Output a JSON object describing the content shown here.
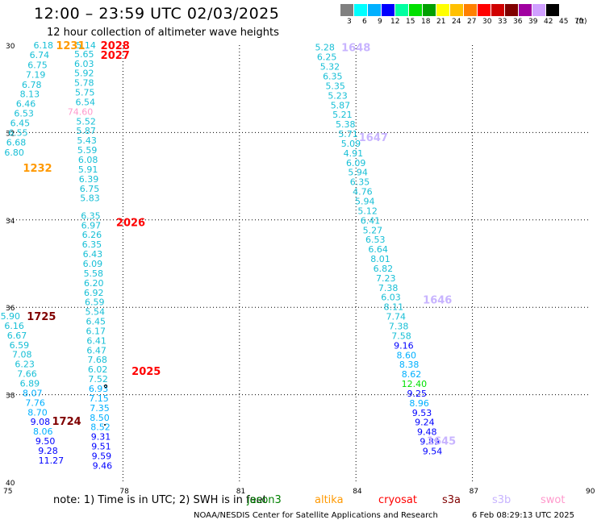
{
  "title": "12:00 – 23:59 UTC 02/03/2025",
  "subtitle": "12 hour collection of altimeter wave heights",
  "legend": {
    "unit": "(ft)",
    "labels": [
      "3",
      "6",
      "9",
      "12",
      "15",
      "18",
      "21",
      "24",
      "27",
      "30",
      "33",
      "36",
      "39",
      "42",
      "45",
      "70"
    ],
    "colors": [
      "#808080",
      "#00ffff",
      "#00b0ff",
      "#0000ff",
      "#00ffa0",
      "#00e000",
      "#00a000",
      "#ffff00",
      "#ffc000",
      "#ff8000",
      "#ff0000",
      "#d00000",
      "#800000",
      "#a000a0",
      "#d0a0ff",
      "#000000"
    ]
  },
  "axes": {
    "x_ticks": [
      "75",
      "78",
      "81",
      "84",
      "87",
      "90"
    ],
    "y_ticks": [
      "30",
      "32",
      "34",
      "36",
      "38",
      "40"
    ],
    "x_range": [
      75,
      90
    ],
    "y_range": [
      -30,
      -40
    ]
  },
  "note": {
    "text": "note:  1) Time is in UTC; 2) SWH is in feet",
    "satellites": [
      {
        "name": "jason3",
        "color": "#008000"
      },
      {
        "name": "altika",
        "color": "#ff9900"
      },
      {
        "name": "cryosat",
        "color": "#ff0000"
      },
      {
        "name": "s3a",
        "color": "#800000"
      },
      {
        "name": "s3b",
        "color": "#c8b4ff"
      },
      {
        "name": "swot",
        "color": "#ff99cc"
      }
    ]
  },
  "credit": "NOAA/NESDIS Center for Satellite Applications and Research",
  "credit_date": "6 Feb 08:29:13 UTC 2025",
  "pass_labels": [
    {
      "text": "1231",
      "lon": 76.65,
      "lat": -30.0,
      "color": "#ff9900"
    },
    {
      "text": "2028",
      "lon": 77.8,
      "lat": -30.0,
      "color": "#ff0000"
    },
    {
      "text": "2027",
      "lon": 77.8,
      "lat": -30.22,
      "color": "#ff0000"
    },
    {
      "text": "1648",
      "lon": 84.0,
      "lat": -30.05,
      "color": "#c8b4ff"
    },
    {
      "text": "1647",
      "lon": 84.45,
      "lat": -32.1,
      "color": "#c8b4ff"
    },
    {
      "text": "1232",
      "lon": 75.8,
      "lat": -32.8,
      "color": "#ff9900"
    },
    {
      "text": "2026",
      "lon": 78.2,
      "lat": -34.05,
      "color": "#ff0000"
    },
    {
      "text": "1646",
      "lon": 86.1,
      "lat": -35.82,
      "color": "#c8b4ff"
    },
    {
      "text": "1725",
      "lon": 75.9,
      "lat": -36.2,
      "color": "#800000"
    },
    {
      "text": "2025",
      "lon": 78.6,
      "lat": -37.45,
      "color": "#ff0000"
    },
    {
      "text": "1724",
      "lon": 76.55,
      "lat": -38.6,
      "color": "#800000"
    },
    {
      "text": "1645",
      "lon": 86.2,
      "lat": -39.05,
      "color": "#c8b4ff"
    }
  ],
  "observations": [
    {
      "v": "6.18",
      "lon": 75.95,
      "lat": -30.0
    },
    {
      "v": "5.14",
      "lon": 77.05,
      "lat": -30.0
    },
    {
      "v": "6.74",
      "lon": 75.85,
      "lat": -30.22
    },
    {
      "v": "5.65",
      "lon": 77.0,
      "lat": -30.2
    },
    {
      "v": "6.75",
      "lon": 75.8,
      "lat": -30.45
    },
    {
      "v": "6.03",
      "lon": 77.0,
      "lat": -30.42
    },
    {
      "v": "7.19",
      "lon": 75.75,
      "lat": -30.67
    },
    {
      "v": "5.92",
      "lon": 77.0,
      "lat": -30.64
    },
    {
      "v": "6.78",
      "lon": 75.65,
      "lat": -30.9
    },
    {
      "v": "5.78",
      "lon": 77.0,
      "lat": -30.86
    },
    {
      "v": "8.13",
      "lon": 75.6,
      "lat": -31.12
    },
    {
      "v": "5.75",
      "lon": 77.02,
      "lat": -31.08
    },
    {
      "v": "6.46",
      "lon": 75.5,
      "lat": -31.34
    },
    {
      "v": "6.54",
      "lon": 77.03,
      "lat": -31.3
    },
    {
      "v": "6.53",
      "lon": 75.45,
      "lat": -31.56
    },
    {
      "v": "74.60",
      "lon": 76.9,
      "lat": -31.52,
      "c": "#ff99cc"
    },
    {
      "v": "6.45",
      "lon": 75.35,
      "lat": -31.78
    },
    {
      "v": "5.52",
      "lon": 77.05,
      "lat": -31.74
    },
    {
      "v": "6.55",
      "lon": 75.3,
      "lat": -32.0
    },
    {
      "v": "5.87",
      "lon": 77.05,
      "lat": -31.96
    },
    {
      "v": "6.68",
      "lon": 75.25,
      "lat": -32.22
    },
    {
      "v": "5.43",
      "lon": 77.07,
      "lat": -32.18
    },
    {
      "v": "6.80",
      "lon": 75.2,
      "lat": -32.45
    },
    {
      "v": "5.59",
      "lon": 77.08,
      "lat": -32.4
    },
    {
      "v": "6.08",
      "lon": 77.1,
      "lat": -32.62
    },
    {
      "v": "5.91",
      "lon": 77.1,
      "lat": -32.84
    },
    {
      "v": "6.39",
      "lon": 77.12,
      "lat": -33.06
    },
    {
      "v": "6.75",
      "lon": 77.14,
      "lat": -33.28
    },
    {
      "v": "5.83",
      "lon": 77.15,
      "lat": -33.5
    },
    {
      "v": "6.35",
      "lon": 77.17,
      "lat": -33.9
    },
    {
      "v": "6.97",
      "lon": 77.18,
      "lat": -34.12
    },
    {
      "v": "6.26",
      "lon": 77.2,
      "lat": -34.34
    },
    {
      "v": "6.35",
      "lon": 77.2,
      "lat": -34.56
    },
    {
      "v": "6.43",
      "lon": 77.22,
      "lat": -34.78
    },
    {
      "v": "6.09",
      "lon": 77.22,
      "lat": -35.0
    },
    {
      "v": "5.58",
      "lon": 77.24,
      "lat": -35.22
    },
    {
      "v": "6.20",
      "lon": 77.25,
      "lat": -35.44
    },
    {
      "v": "6.92",
      "lon": 77.25,
      "lat": -35.66
    },
    {
      "v": "6.59",
      "lon": 77.27,
      "lat": -35.88
    },
    {
      "v": "5.54",
      "lon": 77.28,
      "lat": -36.1
    },
    {
      "v": "6.45",
      "lon": 77.3,
      "lat": -36.32
    },
    {
      "v": "6.17",
      "lon": 77.3,
      "lat": -36.54
    },
    {
      "v": "6.41",
      "lon": 77.32,
      "lat": -36.76
    },
    {
      "v": "6.47",
      "lon": 77.32,
      "lat": -36.98
    },
    {
      "v": "7.68",
      "lon": 77.34,
      "lat": -37.2
    },
    {
      "v": "6.02",
      "lon": 77.35,
      "lat": -37.42
    },
    {
      "v": "7.52",
      "lon": 77.36,
      "lat": -37.64
    },
    {
      "v": "6.93",
      "lon": 77.37,
      "lat": -37.86,
      "c": "#00b0ff"
    },
    {
      "v": "7.15",
      "lon": 77.38,
      "lat": -38.08,
      "c": "#00b0ff"
    },
    {
      "v": "7.35",
      "lon": 77.4,
      "lat": -38.3,
      "c": "#00b0ff"
    },
    {
      "v": "8.50",
      "lon": 77.4,
      "lat": -38.52,
      "c": "#00b0ff"
    },
    {
      "v": "8.52",
      "lon": 77.42,
      "lat": -38.74,
      "c": "#00b0ff"
    },
    {
      "v": "9.31",
      "lon": 77.43,
      "lat": -38.96,
      "c": "#0000ff"
    },
    {
      "v": "9.51",
      "lon": 77.44,
      "lat": -39.18,
      "c": "#0000ff"
    },
    {
      "v": "9.59",
      "lon": 77.45,
      "lat": -39.4,
      "c": "#0000ff"
    },
    {
      "v": "9.46",
      "lon": 77.47,
      "lat": -39.62,
      "c": "#0000ff"
    },
    {
      "v": "5.90",
      "lon": 75.1,
      "lat": -36.2
    },
    {
      "v": "6.16",
      "lon": 75.2,
      "lat": -36.42
    },
    {
      "v": "6.67",
      "lon": 75.27,
      "lat": -36.64
    },
    {
      "v": "6.59",
      "lon": 75.33,
      "lat": -36.86
    },
    {
      "v": "7.08",
      "lon": 75.4,
      "lat": -37.08
    },
    {
      "v": "6.23",
      "lon": 75.47,
      "lat": -37.3
    },
    {
      "v": "7.66",
      "lon": 75.53,
      "lat": -37.52
    },
    {
      "v": "6.89",
      "lon": 75.6,
      "lat": -37.74
    },
    {
      "v": "8.07",
      "lon": 75.67,
      "lat": -37.96,
      "c": "#00b0ff"
    },
    {
      "v": "7.76",
      "lon": 75.74,
      "lat": -38.18,
      "c": "#00b0ff"
    },
    {
      "v": "8.70",
      "lon": 75.8,
      "lat": -38.4,
      "c": "#00b0ff"
    },
    {
      "v": "9.08",
      "lon": 75.87,
      "lat": -38.62,
      "c": "#0000ff"
    },
    {
      "v": "8.06",
      "lon": 75.94,
      "lat": -38.84,
      "c": "#00b0ff"
    },
    {
      "v": "9.50",
      "lon": 76.0,
      "lat": -39.06,
      "c": "#0000ff"
    },
    {
      "v": "9.28",
      "lon": 76.07,
      "lat": -39.28,
      "c": "#0000ff"
    },
    {
      "v": "11.27",
      "lon": 76.15,
      "lat": -39.5,
      "c": "#0000ff"
    },
    {
      "v": "5.28",
      "lon": 83.2,
      "lat": -30.05
    },
    {
      "v": "6.25",
      "lon": 83.25,
      "lat": -30.27
    },
    {
      "v": "5.32",
      "lon": 83.33,
      "lat": -30.49
    },
    {
      "v": "6.35",
      "lon": 83.4,
      "lat": -30.71
    },
    {
      "v": "5.35",
      "lon": 83.47,
      "lat": -30.93
    },
    {
      "v": "5.23",
      "lon": 83.53,
      "lat": -31.15
    },
    {
      "v": "5.87",
      "lon": 83.6,
      "lat": -31.37
    },
    {
      "v": "5.21",
      "lon": 83.65,
      "lat": -31.59
    },
    {
      "v": "5.38",
      "lon": 83.73,
      "lat": -31.81
    },
    {
      "v": "5.71",
      "lon": 83.8,
      "lat": -32.03
    },
    {
      "v": "5.09",
      "lon": 83.87,
      "lat": -32.25
    },
    {
      "v": "4.91",
      "lon": 83.93,
      "lat": -32.47
    },
    {
      "v": "6.09",
      "lon": 84.0,
      "lat": -32.69
    },
    {
      "v": "5.94",
      "lon": 84.05,
      "lat": -32.91
    },
    {
      "v": "6.35",
      "lon": 84.1,
      "lat": -33.13
    },
    {
      "v": "4.76",
      "lon": 84.17,
      "lat": -33.35
    },
    {
      "v": "5.94",
      "lon": 84.23,
      "lat": -33.57
    },
    {
      "v": "5.12",
      "lon": 84.3,
      "lat": -33.79
    },
    {
      "v": "6.41",
      "lon": 84.37,
      "lat": -34.01
    },
    {
      "v": "5.27",
      "lon": 84.43,
      "lat": -34.23
    },
    {
      "v": "6.53",
      "lon": 84.5,
      "lat": -34.45
    },
    {
      "v": "6.64",
      "lon": 84.57,
      "lat": -34.67
    },
    {
      "v": "8.01",
      "lon": 84.63,
      "lat": -34.89
    },
    {
      "v": "6.82",
      "lon": 84.7,
      "lat": -35.11
    },
    {
      "v": "7.23",
      "lon": 84.77,
      "lat": -35.33
    },
    {
      "v": "7.38",
      "lon": 84.83,
      "lat": -35.55
    },
    {
      "v": "6.03",
      "lon": 84.9,
      "lat": -35.77
    },
    {
      "v": "8.11",
      "lon": 84.97,
      "lat": -35.99
    },
    {
      "v": "7.74",
      "lon": 85.03,
      "lat": -36.21
    },
    {
      "v": "7.38",
      "lon": 85.1,
      "lat": -36.43
    },
    {
      "v": "7.58",
      "lon": 85.17,
      "lat": -36.65
    },
    {
      "v": "9.16",
      "lon": 85.23,
      "lat": -36.87,
      "c": "#0000ff"
    },
    {
      "v": "8.60",
      "lon": 85.3,
      "lat": -37.09,
      "c": "#00b0ff"
    },
    {
      "v": "8.38",
      "lon": 85.37,
      "lat": -37.31,
      "c": "#00b0ff"
    },
    {
      "v": "8.62",
      "lon": 85.43,
      "lat": -37.53,
      "c": "#00b0ff"
    },
    {
      "v": "12.40",
      "lon": 85.5,
      "lat": -37.75,
      "c": "#00e000"
    },
    {
      "v": "9.25",
      "lon": 85.57,
      "lat": -37.97,
      "c": "#0000ff"
    },
    {
      "v": "8.96",
      "lon": 85.63,
      "lat": -38.19,
      "c": "#00b0ff"
    },
    {
      "v": "9.53",
      "lon": 85.7,
      "lat": -38.41,
      "c": "#0000ff"
    },
    {
      "v": "9.24",
      "lon": 85.77,
      "lat": -38.63,
      "c": "#0000ff"
    },
    {
      "v": "9.48",
      "lon": 85.83,
      "lat": -38.85,
      "c": "#0000ff"
    },
    {
      "v": "9.89",
      "lon": 85.9,
      "lat": -39.07,
      "c": "#0000ff"
    },
    {
      "v": "9.54",
      "lon": 85.97,
      "lat": -39.29,
      "c": "#0000ff"
    }
  ]
}
